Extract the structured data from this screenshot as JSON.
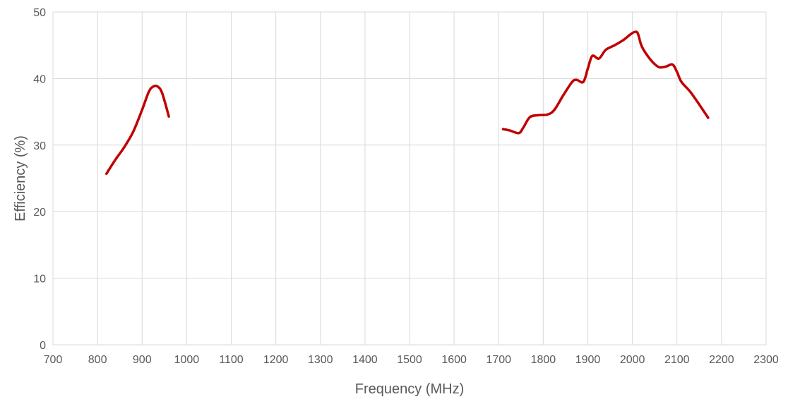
{
  "chart_data": {
    "type": "line",
    "xlabel": "Frequency (MHz)",
    "ylabel": "Efficiency (%)",
    "xlim": [
      700,
      2300
    ],
    "ylim": [
      0,
      50
    ],
    "x_ticks": [
      "700",
      "800",
      "900",
      "1000",
      "1100",
      "1200",
      "1300",
      "1400",
      "1500",
      "1600",
      "1700",
      "1800",
      "1900",
      "2000",
      "2100",
      "2200",
      "2300"
    ],
    "y_ticks": [
      "0",
      "10",
      "20",
      "30",
      "40",
      "50"
    ],
    "grid": "on (vertical and horizontal)",
    "legend": "none",
    "line_color": "#c00000",
    "series": [
      {
        "segments": [
          {
            "x": [
              820,
              840,
              860,
              880,
              900,
              915,
              925,
              935,
              945,
              960
            ],
            "y": [
              25.7,
              27.8,
              29.7,
              32.0,
              35.3,
              38.0,
              38.8,
              38.8,
              37.8,
              34.3
            ]
          },
          {
            "x": [
              1710,
              1725,
              1745,
              1755,
              1770,
              1790,
              1810,
              1825,
              1845,
              1865,
              1875,
              1890,
              1900,
              1910,
              1925,
              1940,
              1960,
              1980,
              1995,
              2005,
              2012,
              2020,
              2030,
              2045,
              2060,
              2075,
              2090,
              2100,
              2110,
              2130,
              2150,
              2170
            ],
            "y": [
              32.4,
              32.2,
              31.8,
              32.6,
              34.2,
              34.5,
              34.6,
              35.3,
              37.5,
              39.5,
              39.8,
              39.5,
              41.5,
              43.4,
              43.0,
              44.3,
              45.0,
              45.8,
              46.6,
              47.0,
              46.8,
              45.0,
              43.8,
              42.5,
              41.7,
              41.8,
              42.1,
              41.0,
              39.5,
              38.0,
              36.1,
              34.1
            ]
          }
        ]
      }
    ]
  }
}
